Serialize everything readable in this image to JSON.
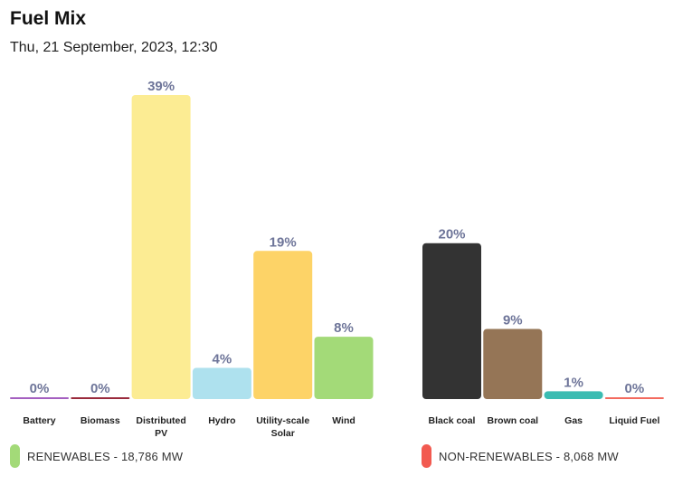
{
  "header": {
    "title": "Fuel Mix",
    "subtitle": "Thu, 21 September, 2023, 12:30"
  },
  "chart_data": {
    "type": "bar",
    "groups": [
      {
        "name": "renewables",
        "categories": [
          "Battery",
          "Biomass",
          "Distributed PV",
          "Hydro",
          "Utility-scale Solar",
          "Wind"
        ],
        "values": [
          0,
          0,
          39,
          4,
          19,
          8
        ],
        "value_labels": [
          "0%",
          "0%",
          "39%",
          "4%",
          "19%",
          "8%"
        ],
        "colors": [
          "#a45fc0",
          "#9a2a3c",
          "#fcec93",
          "#aee1ee",
          "#fdd367",
          "#a3da78"
        ]
      },
      {
        "name": "non-renewables",
        "categories": [
          "Black coal",
          "Brown coal",
          "Gas",
          "Liquid Fuel"
        ],
        "values": [
          20,
          9,
          1,
          0
        ],
        "value_labels": [
          "20%",
          "9%",
          "1%",
          "0%"
        ],
        "colors": [
          "#333333",
          "#957556",
          "#3bbcb2",
          "#f36a5e"
        ]
      }
    ],
    "ylim": [
      0,
      39
    ],
    "value_label_color": "#6e7599"
  },
  "legend": {
    "renewables": {
      "label": "RENEWABLES - 18,786 MW",
      "color": "#a3da78"
    },
    "non_renewables": {
      "label": "NON-RENEWABLES - 8,068 MW",
      "color": "#f25a50"
    }
  }
}
